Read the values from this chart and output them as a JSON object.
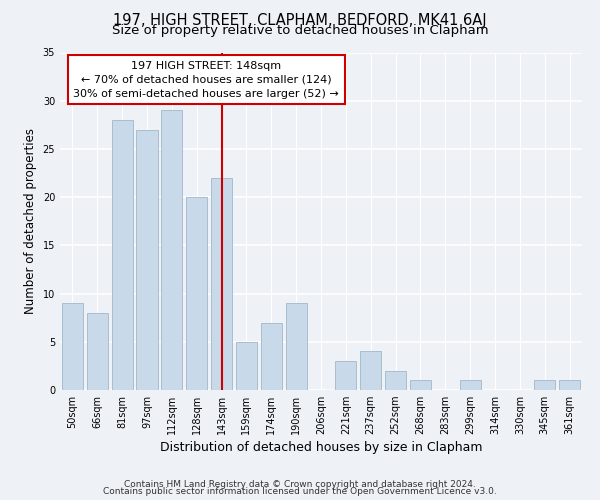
{
  "title": "197, HIGH STREET, CLAPHAM, BEDFORD, MK41 6AJ",
  "subtitle": "Size of property relative to detached houses in Clapham",
  "xlabel": "Distribution of detached houses by size in Clapham",
  "ylabel": "Number of detached properties",
  "bar_labels": [
    "50sqm",
    "66sqm",
    "81sqm",
    "97sqm",
    "112sqm",
    "128sqm",
    "143sqm",
    "159sqm",
    "174sqm",
    "190sqm",
    "206sqm",
    "221sqm",
    "237sqm",
    "252sqm",
    "268sqm",
    "283sqm",
    "299sqm",
    "314sqm",
    "330sqm",
    "345sqm",
    "361sqm"
  ],
  "bar_values": [
    9,
    8,
    28,
    27,
    29,
    20,
    22,
    5,
    7,
    9,
    0,
    3,
    4,
    2,
    1,
    0,
    1,
    0,
    0,
    1,
    1
  ],
  "bar_color": "#c8d9ea",
  "bar_edge_color": "#aabdce",
  "highlight_index": 6,
  "highlight_line_color": "#cc0000",
  "annotation_line1": "197 HIGH STREET: 148sqm",
  "annotation_line2": "← 70% of detached houses are smaller (124)",
  "annotation_line3": "30% of semi-detached houses are larger (52) →",
  "annotation_box_color": "#ffffff",
  "annotation_box_edge_color": "#cc0000",
  "ylim": [
    0,
    35
  ],
  "yticks": [
    0,
    5,
    10,
    15,
    20,
    25,
    30,
    35
  ],
  "footer_line1": "Contains HM Land Registry data © Crown copyright and database right 2024.",
  "footer_line2": "Contains public sector information licensed under the Open Government Licence v3.0.",
  "title_fontsize": 10.5,
  "subtitle_fontsize": 9.5,
  "xlabel_fontsize": 9,
  "ylabel_fontsize": 8.5,
  "tick_fontsize": 7,
  "annotation_fontsize": 8,
  "footer_fontsize": 6.5,
  "bg_color": "#eef2f7"
}
